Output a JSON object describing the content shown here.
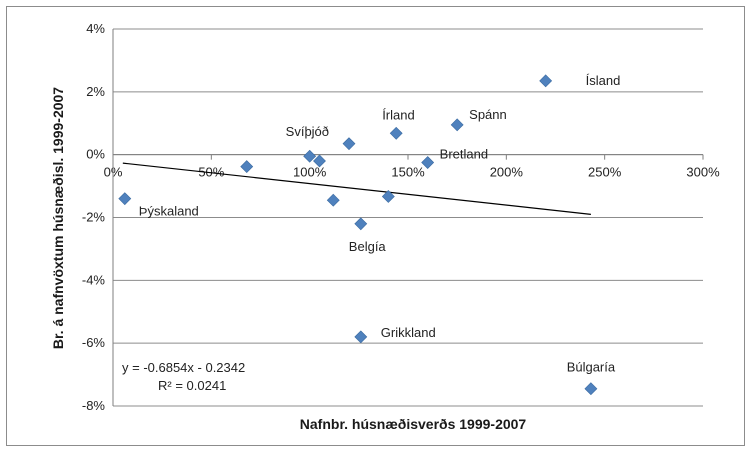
{
  "chart_data": {
    "type": "scatter",
    "xlabel": "Nafnbr. húsnæðisverðs 1999-2007",
    "ylabel": "Br. á nafnvöxtum húsnæðisl. 1999-2007",
    "xlim": [
      0,
      3
    ],
    "ylim": [
      -8,
      4
    ],
    "x_ticks": [
      "0%",
      "50%",
      "100%",
      "150%",
      "200%",
      "250%",
      "300%"
    ],
    "y_ticks": [
      "-8%",
      "-6%",
      "-4%",
      "-2%",
      "0%",
      "2%",
      "4%"
    ],
    "grid": "horizontal",
    "marker_color": "#4f81bd",
    "points": [
      {
        "x": 0.06,
        "y": -1.4,
        "label": "Þýskaland"
      },
      {
        "x": 0.68,
        "y": -0.38,
        "label": ""
      },
      {
        "x": 1.0,
        "y": -0.05,
        "label": "Svíþjóð"
      },
      {
        "x": 1.05,
        "y": -0.2,
        "label": ""
      },
      {
        "x": 1.12,
        "y": -1.45,
        "label": ""
      },
      {
        "x": 1.2,
        "y": 0.35,
        "label": ""
      },
      {
        "x": 1.26,
        "y": -2.2,
        "label": "Belgía"
      },
      {
        "x": 1.4,
        "y": -1.33,
        "label": ""
      },
      {
        "x": 1.44,
        "y": 0.68,
        "label": "Írland"
      },
      {
        "x": 1.6,
        "y": -0.25,
        "label": "Bretland"
      },
      {
        "x": 1.75,
        "y": 0.95,
        "label": "Spánn"
      },
      {
        "x": 2.2,
        "y": 2.35,
        "label": "Ísland"
      },
      {
        "x": 1.26,
        "y": -5.8,
        "label": "Grikkland"
      },
      {
        "x": 2.43,
        "y": -7.45,
        "label": "Búlgaría"
      }
    ],
    "trendline": {
      "slope": -0.6854,
      "intercept": -0.2342,
      "x_range": [
        0.05,
        2.43
      ],
      "equation": "y = -0.6854x - 0.2342",
      "r_squared": "R² = 0.0241"
    }
  }
}
